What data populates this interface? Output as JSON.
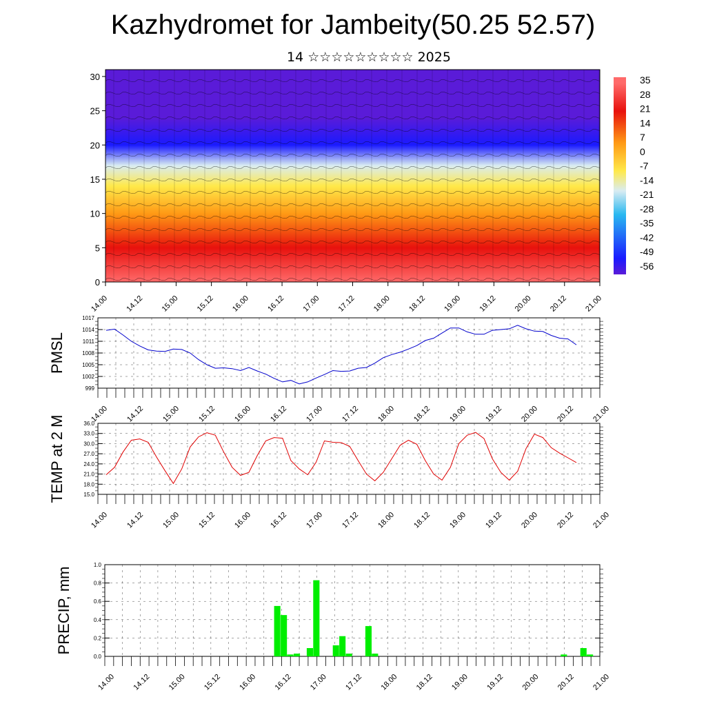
{
  "page": {
    "title": "Kazhydromet for Jambeity(50.25 52.57)",
    "subtitle": "14 ☆☆☆☆☆☆☆☆☆ 2025"
  },
  "chart_data": [
    {
      "id": "height-temp-section",
      "type": "heatmap",
      "xlabel": "",
      "ylabel": "",
      "x_ticks": [
        "14.00",
        "14.12",
        "15.00",
        "15.12",
        "16.00",
        "16.12",
        "17.00",
        "17.12",
        "18.00",
        "18.12",
        "19.00",
        "19.12",
        "20.00",
        "20.12",
        "21.00"
      ],
      "y_ticks": [
        0,
        5,
        10,
        15,
        20,
        25,
        30
      ],
      "ylim": [
        0,
        31
      ],
      "colorbar_labels": [
        "35",
        "28",
        "21",
        "14",
        "7",
        "0",
        "-7",
        "-14",
        "-21",
        "-28",
        "-35",
        "-42",
        "-49",
        "-56"
      ],
      "colorbar_range": [
        -60,
        39
      ],
      "temperature_by_height": [
        {
          "height": 0,
          "temp": 36
        },
        {
          "height": 5,
          "temp": 30
        },
        {
          "height": 10,
          "temp": 18
        },
        {
          "height": 14,
          "temp": 2
        },
        {
          "height": 17,
          "temp": -14
        },
        {
          "height": 20,
          "temp": -38
        },
        {
          "height": 24,
          "temp": -56
        },
        {
          "height": 31,
          "temp": -62
        }
      ],
      "colors": {
        "low": "#5a1bd8",
        "blue": "#1a1aff",
        "cyan": "#29b8f0",
        "light": "#d9ecf2",
        "yellow": "#ffe94a",
        "orange": "#ff9a15",
        "red": "#e8110d",
        "high": "#ff6a6a"
      }
    },
    {
      "id": "pmsl",
      "type": "line",
      "ylabel": "PMSL",
      "x_ticks": [
        "14.00",
        "14.12",
        "15.00",
        "15.12",
        "16.00",
        "16.12",
        "17.00",
        "17.12",
        "18.00",
        "18.12",
        "19.00",
        "19.12",
        "20.00",
        "20.12",
        "21.00"
      ],
      "y_ticks": [
        "999",
        "1002",
        "1005",
        "1008",
        "1011",
        "1014",
        "1017"
      ],
      "ylim": [
        999,
        1017
      ],
      "series": [
        {
          "color": "#0000cc",
          "values": [
            1013.8,
            1014.1,
            1012.6,
            1011.0,
            1009.8,
            1008.8,
            1008.5,
            1008.4,
            1009.0,
            1008.9,
            1008.0,
            1006.3,
            1005.0,
            1004.1,
            1004.2,
            1004.0,
            1003.5,
            1004.3,
            1003.4,
            1002.6,
            1001.5,
            1000.6,
            1001.0,
            1000.1,
            1000.6,
            1001.6,
            1002.5,
            1003.5,
            1003.3,
            1003.4,
            1004.1,
            1004.3,
            1005.4,
            1006.8,
            1007.6,
            1008.2,
            1009.0,
            1009.9,
            1011.2,
            1011.8,
            1013.1,
            1014.4,
            1014.4,
            1013.4,
            1012.8,
            1012.8,
            1013.8,
            1014.0,
            1014.2,
            1015.1,
            1014.2,
            1013.6,
            1013.5,
            1012.5,
            1011.8,
            1011.6,
            1010.1
          ]
        }
      ]
    },
    {
      "id": "temp2m",
      "type": "line",
      "ylabel": "TEMP at 2 M",
      "x_ticks": [
        "14.00",
        "14.12",
        "15.00",
        "15.12",
        "16.00",
        "16.12",
        "17.00",
        "17.12",
        "18.00",
        "18.12",
        "19.00",
        "19.12",
        "20.00",
        "20.12",
        "21.00"
      ],
      "y_ticks": [
        "15.0",
        "18.0",
        "21.0",
        "24.0",
        "27.0",
        "30.0",
        "33.0",
        "36.0"
      ],
      "ylim": [
        15,
        36
      ],
      "series": [
        {
          "color": "#e00000",
          "values": [
            20.8,
            23.0,
            27.5,
            31.0,
            31.4,
            30.4,
            26.0,
            22.0,
            18.2,
            22.5,
            29.0,
            32.0,
            33.2,
            32.5,
            27.5,
            23.0,
            20.6,
            21.5,
            26.5,
            30.8,
            31.8,
            31.6,
            25.0,
            22.5,
            20.8,
            24.5,
            30.8,
            30.4,
            30.3,
            29.2,
            25.0,
            21.0,
            19.0,
            21.5,
            25.5,
            29.5,
            31.0,
            29.8,
            25.0,
            21.0,
            19.2,
            23.0,
            30.0,
            32.5,
            33.3,
            31.5,
            25.5,
            21.5,
            19.2,
            21.8,
            28.5,
            32.8,
            31.8,
            28.8,
            27.2,
            25.8,
            24.4
          ]
        }
      ]
    },
    {
      "id": "precip",
      "type": "bar",
      "ylabel": "PRECIP, mm",
      "x_ticks": [
        "14.00",
        "14.12",
        "15.00",
        "15.12",
        "16.00",
        "16.12",
        "17.00",
        "17.12",
        "18.00",
        "18.12",
        "19.00",
        "19.12",
        "20.00",
        "20.12",
        "21.00"
      ],
      "y_ticks": [
        "0.0",
        "0.2",
        "0.4",
        "0.6",
        "0.8",
        "1.0"
      ],
      "ylim": [
        0,
        1
      ],
      "color": "#00ee00",
      "values": [
        0,
        0,
        0,
        0,
        0,
        0,
        0,
        0,
        0,
        0,
        0,
        0,
        0,
        0,
        0,
        0,
        0,
        0,
        0,
        0,
        0,
        0,
        0,
        0,
        0,
        0,
        0.55,
        0.45,
        0.02,
        0.03,
        0,
        0.09,
        0.83,
        0,
        0,
        0.12,
        0.22,
        0.03,
        0,
        0,
        0.33,
        0.03,
        0,
        0,
        0,
        0,
        0,
        0,
        0,
        0,
        0,
        0,
        0,
        0,
        0,
        0,
        0,
        0,
        0,
        0,
        0,
        0,
        0,
        0,
        0,
        0,
        0,
        0,
        0,
        0,
        0.02,
        0,
        0,
        0.09,
        0.02,
        0
      ]
    }
  ]
}
